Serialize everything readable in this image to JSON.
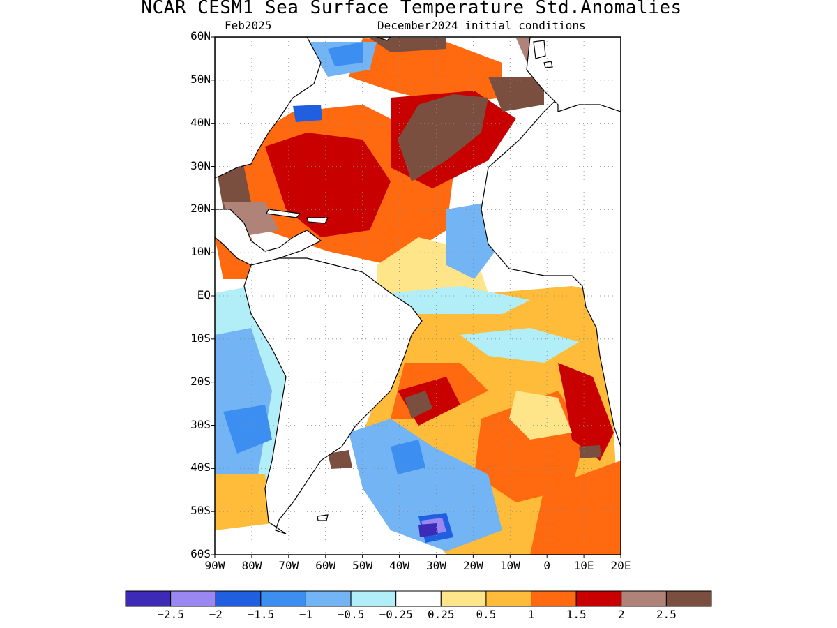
{
  "title": "NCAR_CESM1 Sea Surface Temperature Std.Anomalies",
  "forecast_month": "Feb2025",
  "initial_conditions": "December2024 initial conditions",
  "map": {
    "lon_range": [
      -90,
      20
    ],
    "lat_range": [
      -60,
      60
    ],
    "grid_step_deg": 10,
    "lat_labels": [
      "60N",
      "50N",
      "40N",
      "30N",
      "20N",
      "10N",
      "EQ",
      "10S",
      "20S",
      "30S",
      "40S",
      "50S",
      "60S"
    ],
    "lon_labels": [
      "90W",
      "80W",
      "70W",
      "60W",
      "50W",
      "40W",
      "30W",
      "20W",
      "10W",
      "0",
      "10E",
      "20E"
    ]
  },
  "colorbar": {
    "colors": [
      "#3d2bb8",
      "#9b87f2",
      "#1f5fe0",
      "#3c8ff0",
      "#72b4f4",
      "#b2eef8",
      "#ffffff",
      "#ffe58a",
      "#ffbb3a",
      "#ff6a10",
      "#c80000",
      "#b08378",
      "#7a4f40"
    ],
    "labels": [
      "−2.5",
      "−2",
      "−1.5",
      "−1",
      "−0.5",
      "−0.25",
      "0.25",
      "0.5",
      "1",
      "1.5",
      "2",
      "2.5"
    ]
  }
}
